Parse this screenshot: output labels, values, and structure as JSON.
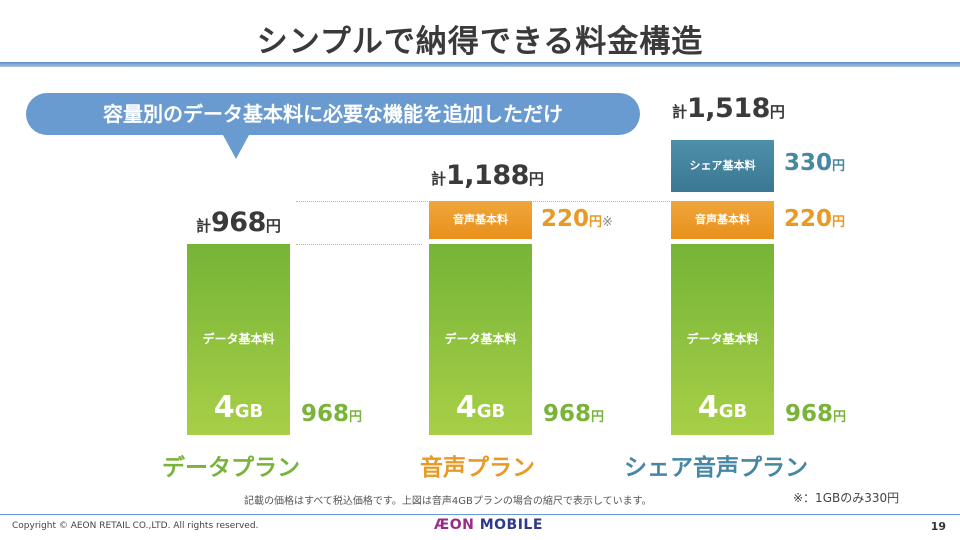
{
  "title": "シンプルで納得できる料金構造",
  "callout": "容量別のデータ基本料に必要な機能を追加しただけ",
  "plans": [
    {
      "name": "データプラン",
      "total_prefix": "計",
      "total_value": "968",
      "total_unit": "円",
      "data_fee_label": "データ基本料",
      "capacity_num": "4",
      "capacity_unit": "GB",
      "data_price": "968",
      "yen": "円",
      "color": "#7ab33a"
    },
    {
      "name": "音声プラン",
      "total_prefix": "計",
      "total_value": "1,188",
      "total_unit": "円",
      "voice_fee_label": "音声基本料",
      "voice_price": "220",
      "voice_mark": "※",
      "data_fee_label": "データ基本料",
      "capacity_num": "4",
      "capacity_unit": "GB",
      "data_price": "968",
      "yen": "円",
      "color": "#e89a25"
    },
    {
      "name": "シェア音声プラン",
      "total_prefix": "計",
      "total_value": "1,518",
      "total_unit": "円",
      "share_fee_label": "シェア基本料",
      "share_price": "330",
      "voice_fee_label": "音声基本料",
      "voice_price": "220",
      "data_fee_label": "データ基本料",
      "capacity_num": "4",
      "capacity_unit": "GB",
      "data_price": "968",
      "yen": "円",
      "color": "#4687a3"
    }
  ],
  "note": "記載の価格はすべて税込価格です。上図は音声4GBプランの場合の縮尺で表示しています。",
  "footnote": "※：1GBのみ330円",
  "footer": {
    "copyright": "Copyright © AEON RETAIL CO.,LTD. All rights reserved.",
    "logo_aeon": "ÆON",
    "logo_mobile": "MOBILE",
    "page_number": "19"
  }
}
